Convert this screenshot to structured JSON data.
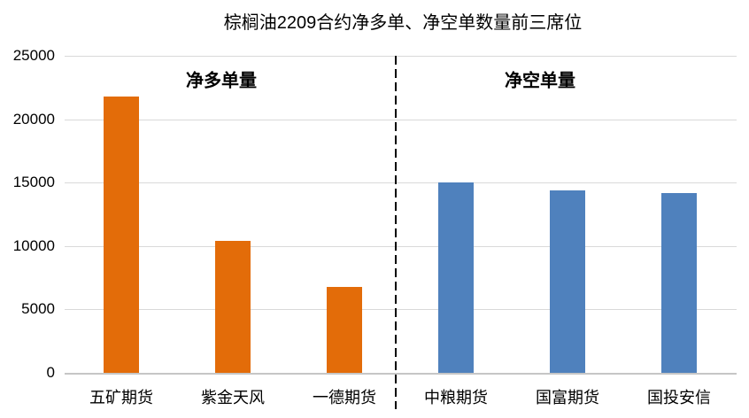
{
  "title": "棕榈油2209合约净多单、净空单数量前三席位",
  "chart_data": {
    "type": "bar",
    "title": "棕榈油2209合约净多单、净空单数量前三席位",
    "xlabel": "",
    "ylabel": "",
    "ylim": [
      0,
      25000
    ],
    "yticks": [
      25000,
      20000,
      15000,
      10000,
      5000,
      0
    ],
    "grid": "horizontal",
    "legend": "none",
    "groups": [
      {
        "label": "净多单量",
        "color": "#E36C09",
        "categories": [
          "五矿期货",
          "紫金天风",
          "一德期货"
        ],
        "values": [
          21800,
          10400,
          6800
        ]
      },
      {
        "label": "净空单量",
        "color": "#4F81BD",
        "categories": [
          "中粮期货",
          "国富期货",
          "国投安信"
        ],
        "values": [
          15000,
          14400,
          14200
        ]
      }
    ],
    "separator": {
      "type": "vertical-dashed-line",
      "color": "#000000"
    }
  },
  "colors": {
    "background": "#FFFFFF",
    "gridline": "#D9D9D9",
    "axis_line": "#C6C6C6",
    "text": "#000000",
    "net_long_bar": "#E36C09",
    "net_short_bar": "#4F81BD"
  }
}
